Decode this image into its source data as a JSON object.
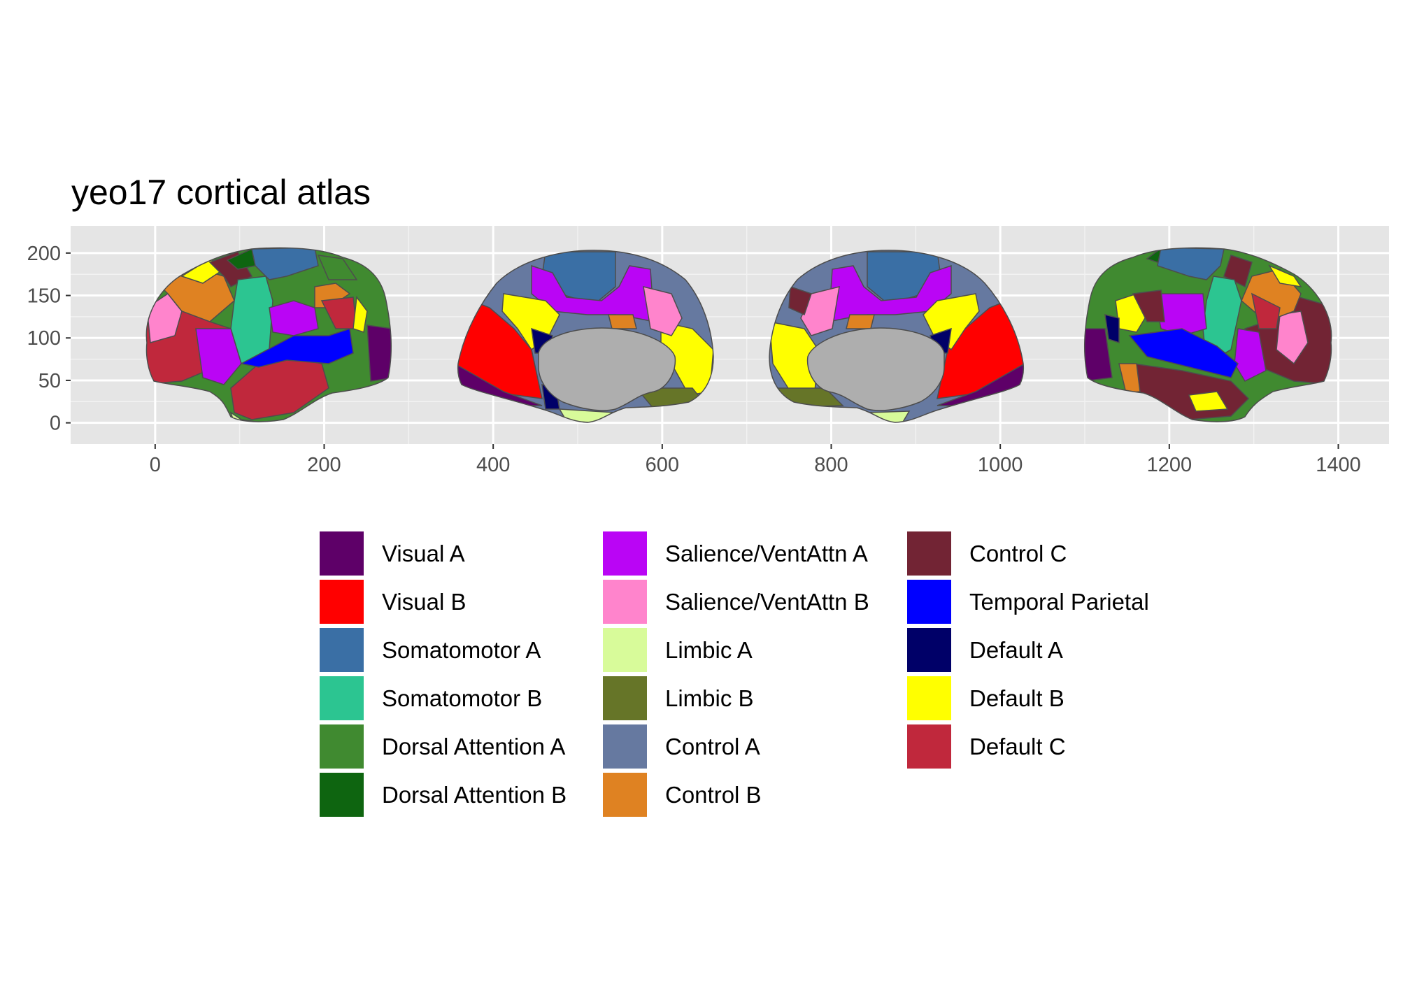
{
  "chart_data": {
    "type": "other",
    "title": "yeo17 cortical atlas",
    "xlabel": "",
    "ylabel": "",
    "xlim": [
      -100,
      1460
    ],
    "ylim": [
      -25,
      232
    ],
    "x_ticks": [
      0,
      200,
      400,
      600,
      800,
      1000,
      1200,
      1400
    ],
    "x_tick_labels": [
      "0",
      "200",
      "400",
      "600",
      "800",
      "1000",
      "1200",
      "1400"
    ],
    "y_ticks": [
      0,
      50,
      100,
      150,
      200
    ],
    "y_tick_labels": [
      "0",
      "50",
      "100",
      "150",
      "200"
    ],
    "grid": true,
    "panel_background": "#E5E5E5",
    "medial_wall_color": "#AEAEAE",
    "region_outline_color": "#4D4D4D",
    "legend_position": "bottom",
    "views": [
      {
        "hemisphere": "left",
        "view": "lateral",
        "x_range": [
          0,
          295
        ]
      },
      {
        "hemisphere": "left",
        "view": "medial",
        "x_range": [
          370,
          675
        ]
      },
      {
        "hemisphere": "right",
        "view": "medial",
        "x_range": [
          735,
          1040
        ]
      },
      {
        "hemisphere": "right",
        "view": "lateral",
        "x_range": [
          1100,
          1400
        ]
      }
    ],
    "legend": [
      {
        "name": "Visual A",
        "color": "#5E0068"
      },
      {
        "name": "Visual B",
        "color": "#FF0000"
      },
      {
        "name": "Somatomotor A",
        "color": "#3A6FA5"
      },
      {
        "name": "Somatomotor B",
        "color": "#2CC591"
      },
      {
        "name": "Dorsal Attention A",
        "color": "#408A30"
      },
      {
        "name": "Dorsal Attention B",
        "color": "#0E6510"
      },
      {
        "name": "Salience/VentAttn A",
        "color": "#BA05F5"
      },
      {
        "name": "Salience/VentAttn B",
        "color": "#FF84CC"
      },
      {
        "name": "Limbic A",
        "color": "#D8FB9A"
      },
      {
        "name": "Limbic B",
        "color": "#667528"
      },
      {
        "name": "Control A",
        "color": "#6679A0"
      },
      {
        "name": "Control B",
        "color": "#DF8222"
      },
      {
        "name": "Control C",
        "color": "#722434"
      },
      {
        "name": "Temporal Parietal",
        "color": "#0000FF"
      },
      {
        "name": "Default A",
        "color": "#000068"
      },
      {
        "name": "Default B",
        "color": "#FFFF00"
      },
      {
        "name": "Default C",
        "color": "#C0283C"
      }
    ]
  }
}
